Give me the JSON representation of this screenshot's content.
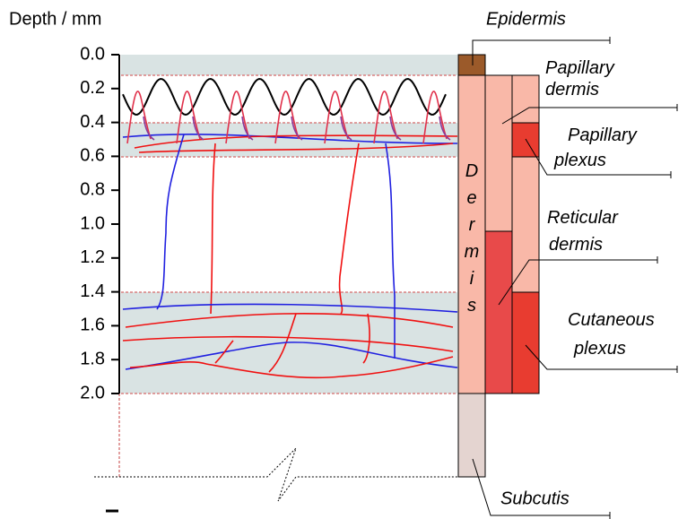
{
  "axis": {
    "title": "Depth / mm",
    "ticks": [
      {
        "value": 0,
        "label": "0.0"
      },
      {
        "value": 0.2,
        "label": "0.2"
      },
      {
        "value": 0.4,
        "label": "0.4"
      },
      {
        "value": 0.6,
        "label": "0.6"
      },
      {
        "value": 0.8,
        "label": "0.8"
      },
      {
        "value": 1,
        "label": "1.0"
      },
      {
        "value": 1.2,
        "label": "1.2"
      },
      {
        "value": 1.4,
        "label": "1.4"
      },
      {
        "value": 1.6,
        "label": "1.6"
      },
      {
        "value": 1.8,
        "label": "1.8"
      },
      {
        "value": 2,
        "label": "2.0"
      }
    ]
  },
  "labels": {
    "epidermis": "Epidermis",
    "dermis": "Dermis",
    "papillary_dermis": [
      "Papillary",
      "dermis"
    ],
    "papillary_plexus": [
      "Papillary",
      "plexus"
    ],
    "reticular_dermis": [
      "Reticular",
      "dermis"
    ],
    "cutaneous_plexus": [
      "Cutaneous",
      "plexus"
    ],
    "subcutis": "Subcutis"
  }
}
